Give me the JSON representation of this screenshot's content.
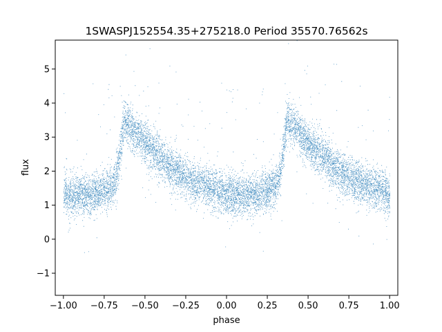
{
  "chart_data": {
    "type": "scatter",
    "title": "1SWASPJ152554.35+275218.0 Period 35570.76562s",
    "xlabel": "phase",
    "ylabel": "flux",
    "xlim": [
      -1.05,
      1.05
    ],
    "ylim": [
      -1.65,
      5.85
    ],
    "x_ticks": [
      -1.0,
      -0.75,
      -0.5,
      -0.25,
      0.0,
      0.25,
      0.5,
      0.75,
      1.0
    ],
    "x_tick_labels": [
      "−1.00",
      "−0.75",
      "−0.50",
      "−0.25",
      "0.00",
      "0.25",
      "0.50",
      "0.75",
      "1.00"
    ],
    "y_ticks": [
      -1,
      0,
      1,
      2,
      3,
      4,
      5
    ],
    "y_tick_labels": [
      "−1",
      "0",
      "1",
      "2",
      "3",
      "4",
      "5"
    ],
    "grid": false,
    "point_color": "#1f77b4",
    "light_curve_profile": {
      "phase": [
        0.0,
        0.1,
        0.2,
        0.3,
        0.33,
        0.37,
        0.45,
        0.55,
        0.65,
        0.75,
        0.85,
        0.95,
        1.0
      ],
      "flux": [
        1.3,
        1.3,
        1.35,
        1.55,
        2.0,
        3.5,
        3.1,
        2.6,
        2.15,
        1.8,
        1.6,
        1.45,
        1.3
      ]
    },
    "approx_point_count": 10000
  }
}
